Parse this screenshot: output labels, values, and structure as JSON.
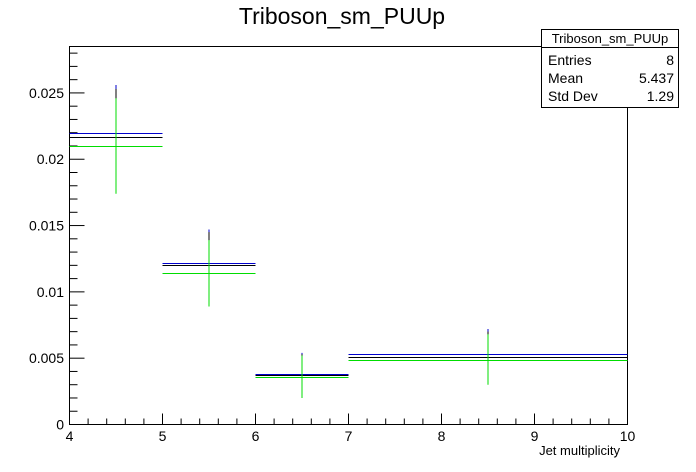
{
  "chart_data": {
    "type": "histogram",
    "title": "Triboson_sm_PUUp",
    "xlabel": "Jet multiplicity",
    "ylabel": "",
    "xlim": [
      4,
      10
    ],
    "ylim": [
      0,
      0.0285
    ],
    "x_ticks": [
      4,
      5,
      6,
      7,
      8,
      9,
      10
    ],
    "y_ticks": [
      0,
      0.005,
      0.01,
      0.015,
      0.02,
      0.025
    ],
    "y_tick_labels": [
      "0",
      "0.005",
      "0.01",
      "0.015",
      "0.02",
      "0.025"
    ],
    "bins": [
      {
        "low": 4,
        "high": 5,
        "center": 4.5,
        "err": 0.0036
      },
      {
        "low": 5,
        "high": 6,
        "center": 5.5,
        "err": 0.0025
      },
      {
        "low": 6,
        "high": 7,
        "center": 6.5,
        "err": 0.0016
      },
      {
        "low": 7,
        "high": 10,
        "center": 8.5,
        "err": 0.0019
      }
    ],
    "series": [
      {
        "color": "#0000cc",
        "values": [
          0.022,
          0.0122,
          0.0038,
          0.0053
        ]
      },
      {
        "color": "#000000",
        "values": [
          0.0217,
          0.012,
          0.0037,
          0.0051
        ]
      },
      {
        "color": "#00dd00",
        "values": [
          0.021,
          0.0114,
          0.0036,
          0.0049
        ]
      }
    ],
    "stats": {
      "name": "Triboson_sm_PUUp",
      "rows": [
        {
          "label": "Entries",
          "value": "8"
        },
        {
          "label": "Mean",
          "value": "5.437"
        },
        {
          "label": "Std Dev",
          "value": "1.29"
        }
      ]
    }
  }
}
